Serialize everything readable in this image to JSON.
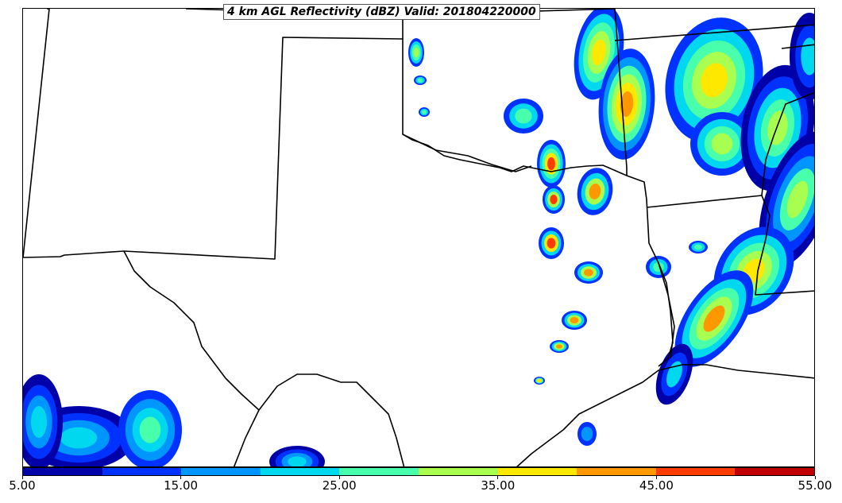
{
  "title": "4 km AGL Reflectivity (dBZ) Valid: 201804220000",
  "colorbar": {
    "colors": [
      "#0000a8",
      "#0032ff",
      "#0096ff",
      "#00d8f0",
      "#48ffac",
      "#a8ff50",
      "#ffe800",
      "#ff9800",
      "#ff3c00",
      "#c00000"
    ],
    "labels": [
      "5.00",
      "15.00",
      "25.00",
      "35.00",
      "45.00",
      "55.00"
    ]
  },
  "legend": {
    "dbz_min": 5,
    "dbz_max": 55,
    "dbz_step": 5
  }
}
